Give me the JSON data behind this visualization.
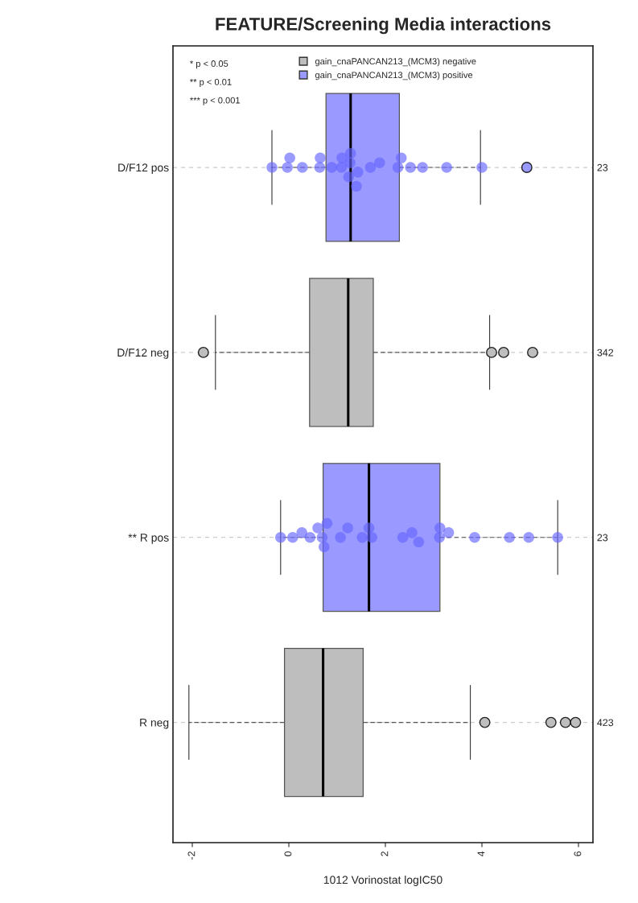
{
  "chart_data": {
    "type": "box",
    "orientation": "horizontal",
    "title": "FEATURE/Screening Media interactions",
    "xlabel": "1012 Vorinostat logIC50",
    "categories": [
      "D/F12 pos",
      "D/F12 neg",
      "** R pos",
      "R neg"
    ],
    "y2_categories": [
      "23",
      "342",
      "23",
      "423"
    ],
    "xlim": [
      -2.4,
      6.3
    ],
    "xticks": [
      -2,
      0,
      2,
      4,
      6
    ],
    "grid": "y",
    "legend": "top",
    "annotations": [
      "* p < 0.05",
      "** p < 0.01",
      "*** p < 0.001"
    ],
    "series": [
      {
        "name": "gain_cnaPANCAN213_(MCM3) negative",
        "color": "#bebebe",
        "boxes": [
          null,
          {
            "low": -1.52,
            "q1": 0.43,
            "median": 1.23,
            "q3": 1.75,
            "high": 4.16,
            "outliers": [
              -1.77,
              4.2,
              4.45,
              5.05
            ]
          },
          null,
          {
            "low": -2.07,
            "q1": -0.09,
            "median": 0.71,
            "q3": 1.54,
            "high": 3.76,
            "outliers": [
              4.06,
              5.43,
              5.73,
              5.94
            ]
          }
        ]
      },
      {
        "name": "gain_cnaPANCAN213_(MCM3) positive",
        "color": "#9999ff",
        "boxes": [
          {
            "low": -0.35,
            "q1": 0.77,
            "median": 1.28,
            "q3": 2.29,
            "high": 3.97,
            "outliers": [
              4.93
            ]
          },
          null,
          {
            "low": -0.17,
            "q1": 0.71,
            "median": 1.66,
            "q3": 3.13,
            "high": 5.57
          },
          null
        ]
      },
      {
        "type": "scatter",
        "color": "#6666ff",
        "x": [
          "D/F12 pos",
          "D/F12 pos",
          "D/F12 pos",
          "D/F12 pos",
          "D/F12 pos",
          "D/F12 pos",
          "D/F12 pos",
          "D/F12 pos",
          "D/F12 pos",
          "D/F12 pos",
          "D/F12 pos",
          "D/F12 pos",
          "D/F12 pos",
          "D/F12 pos",
          "D/F12 pos",
          "D/F12 pos",
          "D/F12 pos",
          "D/F12 pos",
          "D/F12 pos",
          "D/F12 pos",
          "D/F12 pos",
          "D/F12 pos"
        ],
        "values": [
          -0.35,
          -0.03,
          0.02,
          0.28,
          0.64,
          0.65,
          0.89,
          1.09,
          1.1,
          1.24,
          1.27,
          1.28,
          1.4,
          1.43,
          1.69,
          1.88,
          2.26,
          2.33,
          2.52,
          2.77,
          3.27,
          4.0
        ]
      },
      {
        "type": "scatter",
        "color": "#6666ff",
        "x": [
          "** R pos",
          "** R pos",
          "** R pos",
          "** R pos",
          "** R pos",
          "** R pos",
          "** R pos",
          "** R pos",
          "** R pos",
          "** R pos",
          "** R pos",
          "** R pos",
          "** R pos",
          "** R pos",
          "** R pos",
          "** R pos",
          "** R pos",
          "** R pos",
          "** R pos",
          "** R pos",
          "** R pos",
          "** R pos",
          "** R pos"
        ],
        "values": [
          -0.17,
          0.08,
          0.27,
          0.44,
          0.6,
          0.69,
          0.73,
          0.79,
          1.07,
          1.22,
          1.52,
          1.66,
          1.72,
          2.36,
          2.55,
          2.69,
          3.12,
          3.13,
          3.31,
          3.85,
          4.57,
          4.97,
          5.57
        ]
      }
    ]
  }
}
